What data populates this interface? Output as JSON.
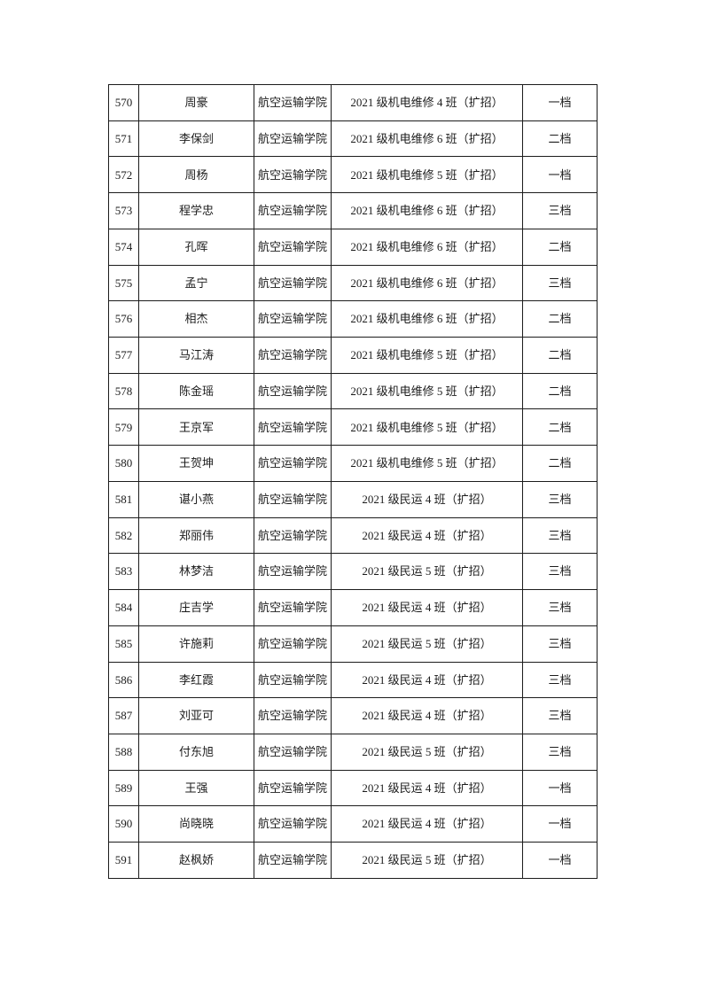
{
  "page": {
    "background_color": "#ffffff",
    "border_color": "#1c1c1c",
    "text_color": "#1c1c1c"
  },
  "table": {
    "fields": [
      "no",
      "name",
      "college",
      "class_name",
      "level"
    ],
    "rows": [
      {
        "no": "570",
        "name": "周豪",
        "college": "航空运输学院",
        "class_name": "2021 级机电维修 4 班（扩招）",
        "level": "一档"
      },
      {
        "no": "571",
        "name": "李保剑",
        "college": "航空运输学院",
        "class_name": "2021 级机电维修 6 班（扩招）",
        "level": "二档"
      },
      {
        "no": "572",
        "name": "周杨",
        "college": "航空运输学院",
        "class_name": "2021 级机电维修 5 班（扩招）",
        "level": "一档"
      },
      {
        "no": "573",
        "name": "程学忠",
        "college": "航空运输学院",
        "class_name": "2021 级机电维修 6 班（扩招）",
        "level": "三档"
      },
      {
        "no": "574",
        "name": "孔晖",
        "college": "航空运输学院",
        "class_name": "2021 级机电维修 6 班（扩招）",
        "level": "二档"
      },
      {
        "no": "575",
        "name": "孟宁",
        "college": "航空运输学院",
        "class_name": "2021 级机电维修 6 班（扩招）",
        "level": "三档"
      },
      {
        "no": "576",
        "name": "相杰",
        "college": "航空运输学院",
        "class_name": "2021 级机电维修 6 班（扩招）",
        "level": "二档"
      },
      {
        "no": "577",
        "name": "马江涛",
        "college": "航空运输学院",
        "class_name": "2021 级机电维修 5 班（扩招）",
        "level": "二档"
      },
      {
        "no": "578",
        "name": "陈金瑶",
        "college": "航空运输学院",
        "class_name": "2021 级机电维修 5 班（扩招）",
        "level": "二档"
      },
      {
        "no": "579",
        "name": "王京军",
        "college": "航空运输学院",
        "class_name": "2021 级机电维修 5 班（扩招）",
        "level": "二档"
      },
      {
        "no": "580",
        "name": "王贺坤",
        "college": "航空运输学院",
        "class_name": "2021 级机电维修 5 班（扩招）",
        "level": "二档"
      },
      {
        "no": "581",
        "name": "谌小燕",
        "college": "航空运输学院",
        "class_name": "2021 级民运 4 班（扩招）",
        "level": "三档"
      },
      {
        "no": "582",
        "name": "郑丽伟",
        "college": "航空运输学院",
        "class_name": "2021 级民运 4 班（扩招）",
        "level": "三档"
      },
      {
        "no": "583",
        "name": "林梦洁",
        "college": "航空运输学院",
        "class_name": "2021 级民运 5 班（扩招）",
        "level": "三档"
      },
      {
        "no": "584",
        "name": "庄吉学",
        "college": "航空运输学院",
        "class_name": "2021 级民运 4 班（扩招）",
        "level": "三档"
      },
      {
        "no": "585",
        "name": "许施莉",
        "college": "航空运输学院",
        "class_name": "2021 级民运 5 班（扩招）",
        "level": "三档"
      },
      {
        "no": "586",
        "name": "李红霞",
        "college": "航空运输学院",
        "class_name": "2021 级民运 4 班（扩招）",
        "level": "三档"
      },
      {
        "no": "587",
        "name": "刘亚可",
        "college": "航空运输学院",
        "class_name": "2021 级民运 4 班（扩招）",
        "level": "三档"
      },
      {
        "no": "588",
        "name": "付东旭",
        "college": "航空运输学院",
        "class_name": "2021 级民运 5 班（扩招）",
        "level": "三档"
      },
      {
        "no": "589",
        "name": "王强",
        "college": "航空运输学院",
        "class_name": "2021 级民运 4 班（扩招）",
        "level": "一档"
      },
      {
        "no": "590",
        "name": "尚晓晓",
        "college": "航空运输学院",
        "class_name": "2021 级民运 4 班（扩招）",
        "level": "一档"
      },
      {
        "no": "591",
        "name": "赵枫娇",
        "college": "航空运输学院",
        "class_name": "2021 级民运 5 班（扩招）",
        "level": "一档"
      }
    ]
  }
}
